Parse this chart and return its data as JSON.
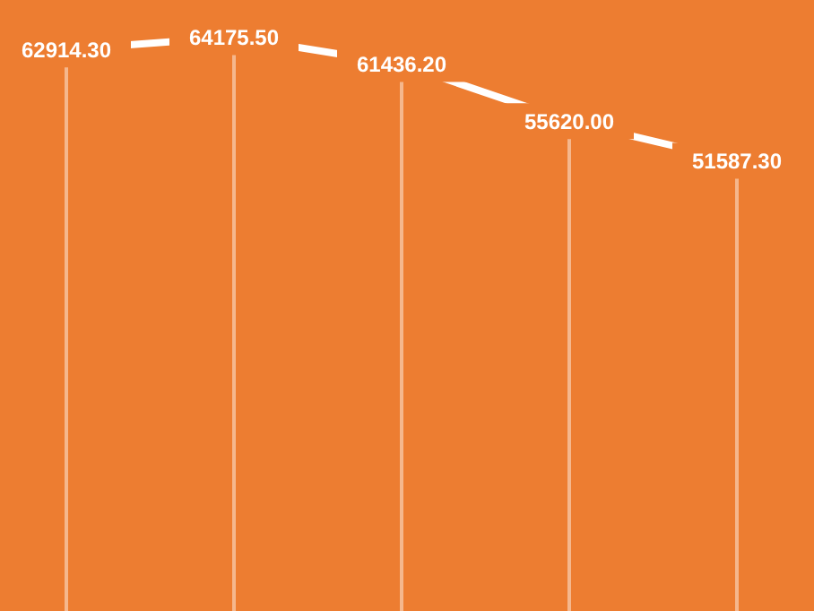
{
  "chart_data": {
    "type": "line",
    "categories": [
      null,
      null,
      null,
      null,
      null
    ],
    "series": [
      {
        "color": "#ffffff",
        "values": [
          62914.3,
          64175.5,
          61436.2,
          55620.0,
          51587.3
        ],
        "value_labels": [
          "62914.30",
          "64175.50",
          "61436.20",
          "55620.00",
          "51587.30"
        ]
      }
    ],
    "grid": "x"
  }
}
